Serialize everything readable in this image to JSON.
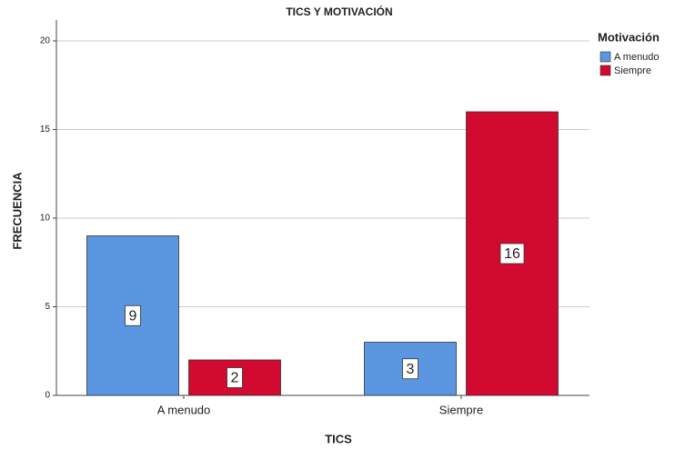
{
  "chart_data": {
    "type": "bar",
    "title": "TICS Y MOTIVACIÓN",
    "x_label": "TICS",
    "y_label": "FRECUENCIA",
    "categories": [
      "A menudo",
      "Siempre"
    ],
    "legend_title": "Motivación",
    "series": [
      {
        "name": "A menudo",
        "color": "#5b96e1",
        "values": [
          9,
          3
        ]
      },
      {
        "name": "Siempre",
        "color": "#d20a2f",
        "values": [
          2,
          16
        ]
      }
    ],
    "ylim": [
      0,
      20
    ],
    "yticks": [
      0,
      5,
      10,
      15,
      20
    ],
    "grid": true,
    "legend": "top-right"
  }
}
